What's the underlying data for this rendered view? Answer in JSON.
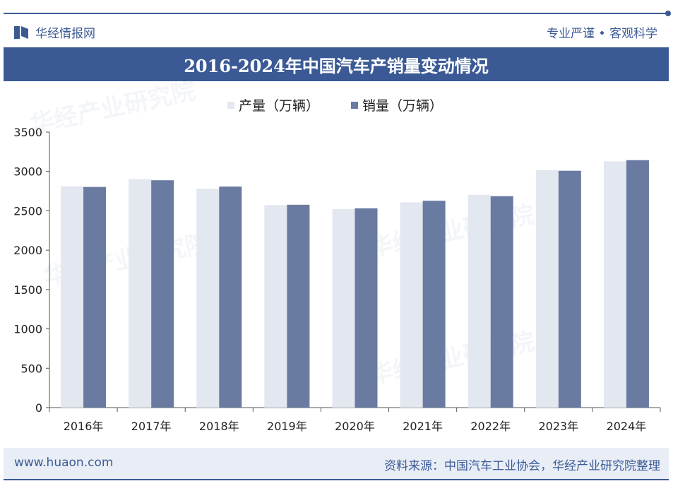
{
  "header": {
    "brand": "华经情报网",
    "slogan": "专业严谨 • 客观科学",
    "title": "2016-2024年中国汽车产销量变动情况"
  },
  "footer": {
    "url": "www.huaon.com",
    "source": "资料来源：中国汽车工业协会，华经产业研究院整理"
  },
  "watermark": {
    "name": "华经产业研究院",
    "url": "www.huaon.com"
  },
  "colors": {
    "accent": "#3b5a95",
    "production": "#e3e7ef",
    "sales": "#6a7ba1"
  },
  "chart_data": {
    "type": "bar",
    "title": "2016-2024年中国汽车产销量变动情况",
    "xlabel": "",
    "ylabel": "",
    "ylim": [
      0,
      3500
    ],
    "yticks": [
      0,
      500,
      1000,
      1500,
      2000,
      2500,
      3000,
      3500
    ],
    "categories": [
      "2016年",
      "2017年",
      "2018年",
      "2019年",
      "2020年",
      "2021年",
      "2022年",
      "2023年",
      "2024年"
    ],
    "series": [
      {
        "name": "产量（万辆）",
        "values": [
          2812,
          2902,
          2781,
          2572,
          2523,
          2608,
          2702,
          3016,
          3128
        ]
      },
      {
        "name": "销量（万辆）",
        "values": [
          2803,
          2888,
          2808,
          2577,
          2531,
          2628,
          2686,
          3009,
          3144
        ]
      }
    ],
    "legend_position": "top-center",
    "grid": false
  }
}
